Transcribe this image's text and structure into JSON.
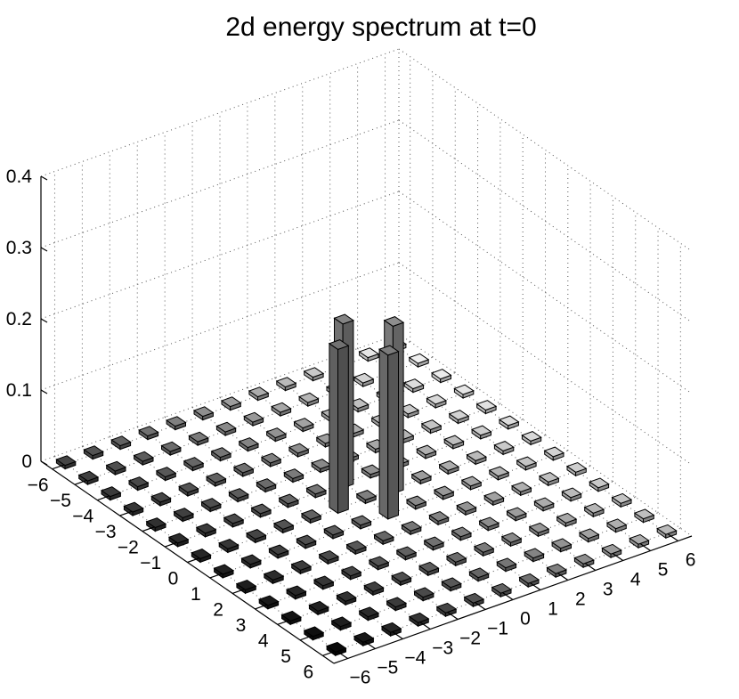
{
  "chart_data": {
    "type": "bar3d",
    "title": "2d energy spectrum at t=0",
    "xlabel": "",
    "ylabel": "",
    "zlabel": "",
    "x_ticks": [
      "−6",
      "−5",
      "−4",
      "−3",
      "−2",
      "−1",
      "0",
      "1",
      "2",
      "3",
      "4",
      "5",
      "6"
    ],
    "y_ticks": [
      "−6",
      "−5",
      "−4",
      "−3",
      "−2",
      "−1",
      "0",
      "1",
      "2",
      "3",
      "4",
      "5",
      "6"
    ],
    "z_ticks": [
      "0",
      "0.1",
      "0.2",
      "0.3",
      "0.4"
    ],
    "xlim": [
      -6.5,
      6.5
    ],
    "ylim": [
      -6.5,
      6.5
    ],
    "zlim": [
      0,
      0.4
    ],
    "grid": true,
    "colormap": "gray",
    "tall_bars": [
      {
        "x": -1,
        "y": 0,
        "value": 0.23
      },
      {
        "x": 0,
        "y": -1,
        "value": 0.23
      },
      {
        "x": 0,
        "y": 1,
        "value": 0.235
      },
      {
        "x": 1,
        "y": 0,
        "value": 0.23
      }
    ],
    "background_value": 0.005
  }
}
